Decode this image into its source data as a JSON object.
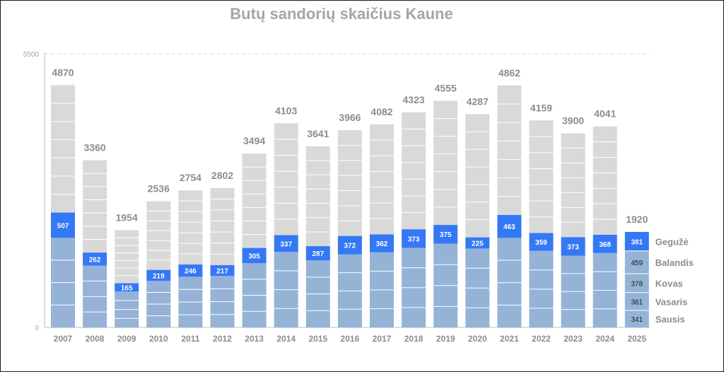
{
  "chart_data": {
    "type": "bar",
    "title": "Butų sandorių skaičius Kaune",
    "categories": [
      "2007",
      "2008",
      "2009",
      "2010",
      "2011",
      "2012",
      "2013",
      "2014",
      "2015",
      "2016",
      "2017",
      "2018",
      "2019",
      "2020",
      "2021",
      "2022",
      "2023",
      "2024",
      "2025"
    ],
    "ylim": [
      0,
      5500
    ],
    "y_ticks": [
      "0",
      "5500"
    ],
    "totals": [
      4870,
      3360,
      1954,
      2536,
      2754,
      2802,
      3494,
      4103,
      3641,
      3966,
      4082,
      4323,
      4555,
      4287,
      4862,
      4159,
      3900,
      4041,
      1920
    ],
    "series": [
      {
        "name": "Sausis",
        "values": [
          null,
          null,
          null,
          null,
          null,
          null,
          null,
          null,
          null,
          null,
          null,
          null,
          null,
          null,
          null,
          null,
          null,
          null,
          341
        ]
      },
      {
        "name": "Vasaris",
        "values": [
          null,
          null,
          null,
          null,
          null,
          null,
          null,
          null,
          null,
          null,
          null,
          null,
          null,
          null,
          null,
          null,
          null,
          null,
          361
        ]
      },
      {
        "name": "Kovas",
        "values": [
          null,
          null,
          null,
          null,
          null,
          null,
          null,
          null,
          null,
          null,
          null,
          null,
          null,
          null,
          null,
          null,
          null,
          null,
          378
        ]
      },
      {
        "name": "Balandis",
        "values": [
          null,
          null,
          null,
          null,
          null,
          null,
          null,
          null,
          null,
          null,
          null,
          null,
          null,
          null,
          null,
          null,
          null,
          null,
          459
        ]
      },
      {
        "name": "Gegužė",
        "values": [
          507,
          262,
          165,
          219,
          246,
          217,
          305,
          337,
          287,
          372,
          362,
          373,
          375,
          225,
          463,
          359,
          373,
          368,
          381
        ]
      }
    ],
    "colors": {
      "jan_apr": "#95b3d7",
      "may": "#3478f6",
      "jun_dec": "#d9d9d9",
      "separator": "#ffffff",
      "gridline": "#d9d9d9",
      "axis": "#bfbfbf"
    },
    "grid": "dashed line at 5500",
    "legend_position": "right of 2025 bar"
  }
}
